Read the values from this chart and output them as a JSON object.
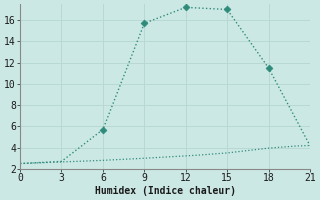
{
  "title": "",
  "xlabel": "Humidex (Indice chaleur)",
  "line1_x": [
    0,
    3,
    6,
    9,
    12,
    15,
    18,
    21
  ],
  "line1_y": [
    2.5,
    2.7,
    5.7,
    15.7,
    17.2,
    17.0,
    11.5,
    4.2
  ],
  "line2_x": [
    0,
    1,
    2,
    3,
    4,
    5,
    6,
    7,
    8,
    9,
    10,
    11,
    12,
    13,
    14,
    15,
    16,
    17,
    18,
    19,
    20,
    21
  ],
  "line2_y": [
    2.5,
    2.55,
    2.6,
    2.65,
    2.7,
    2.75,
    2.8,
    2.87,
    2.93,
    3.0,
    3.07,
    3.15,
    3.22,
    3.3,
    3.4,
    3.5,
    3.65,
    3.8,
    3.95,
    4.05,
    4.15,
    4.2
  ],
  "line1_marker_x": [
    6,
    9,
    12,
    15,
    18
  ],
  "line1_marker_y": [
    5.7,
    15.7,
    17.2,
    17.0,
    11.5
  ],
  "line_color": "#2e8b7a",
  "bg_color": "#cce8e4",
  "grid_color": "#b8d8d4",
  "text_color": "#1a1a1a",
  "xlim": [
    0,
    21
  ],
  "ylim": [
    2,
    17.5
  ],
  "xticks": [
    0,
    3,
    6,
    9,
    12,
    15,
    18,
    21
  ],
  "yticks": [
    2,
    4,
    6,
    8,
    10,
    12,
    14,
    16
  ]
}
